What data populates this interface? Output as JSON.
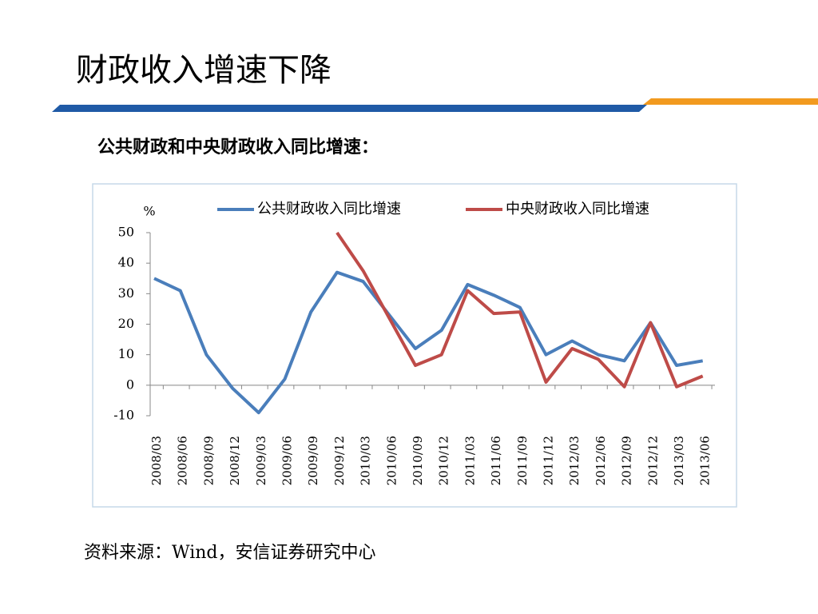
{
  "chart_data": {
    "type": "line",
    "title": "财政收入增速下降",
    "subtitle": "公共财政和中央财政收入同比增速：",
    "y_label": "%",
    "source": "资料来源：Wind，安信证券研究中心",
    "categories": [
      "2008/03",
      "2008/06",
      "2008/09",
      "2008/12",
      "2009/03",
      "2009/06",
      "2009/09",
      "2009/12",
      "2010/03",
      "2010/06",
      "2010/09",
      "2010/12",
      "2011/03",
      "2011/06",
      "2011/09",
      "2011/12",
      "2012/03",
      "2012/06",
      "2012/09",
      "2012/12",
      "2013/03",
      "2013/06"
    ],
    "series": [
      {
        "name": "公共财政收入同比增速",
        "color": "#4a7ebb",
        "values": [
          35,
          31,
          10,
          -1,
          -9,
          2,
          24,
          37,
          34,
          23,
          12,
          18,
          33,
          29.5,
          25.5,
          10,
          14.5,
          10,
          8,
          20.5,
          6.5,
          8
        ]
      },
      {
        "name": "中央财政收入同比增速",
        "color": "#be4b48",
        "values": [
          null,
          null,
          null,
          null,
          null,
          null,
          null,
          50,
          37.5,
          22,
          6.5,
          10,
          31,
          23.5,
          24,
          1,
          12,
          8.5,
          -0.5,
          20.5,
          -0.5,
          3
        ]
      }
    ],
    "ylim": [
      -10,
      50
    ],
    "yticks": [
      -10,
      0,
      10,
      20,
      30,
      40,
      50
    ],
    "legend": "top"
  }
}
